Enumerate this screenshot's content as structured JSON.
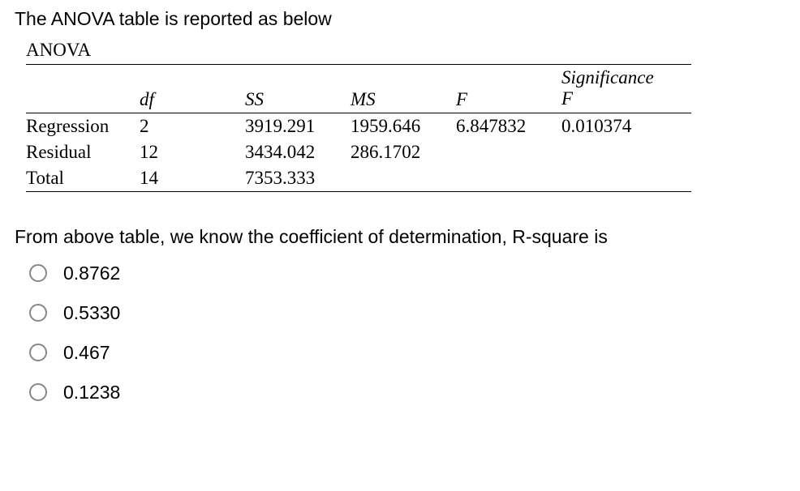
{
  "intro": "The ANOVA table is reported as below",
  "table": {
    "title": "ANOVA",
    "headers": {
      "label": "",
      "df": "df",
      "ss": "SS",
      "ms": "MS",
      "f": "F",
      "sig_line1": "Significance",
      "sig_line2": "F"
    },
    "rows": [
      {
        "label": "Regression",
        "df": "2",
        "ss": "3919.291",
        "ms": "1959.646",
        "f": "6.847832",
        "sig": "0.010374"
      },
      {
        "label": "Residual",
        "df": "12",
        "ss": "3434.042",
        "ms": "286.1702",
        "f": "",
        "sig": ""
      },
      {
        "label": "Total",
        "df": "14",
        "ss": "7353.333",
        "ms": "",
        "f": "",
        "sig": ""
      }
    ]
  },
  "question": "From above table, we know the coefficient of determination, R-square is",
  "options": [
    "0.8762",
    "0.5330",
    "0.467",
    "0.1238"
  ],
  "style": {
    "background_color": "#ffffff",
    "text_color": "#000000",
    "border_color": "#000000",
    "radio_border_color": "#878787",
    "body_fontsize": 23,
    "table_font": "Times New Roman"
  }
}
